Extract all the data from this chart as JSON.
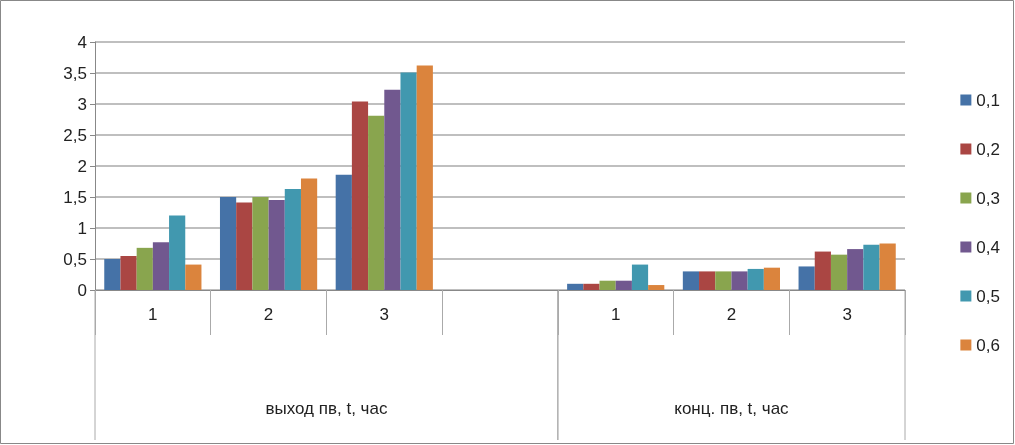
{
  "chart_data": {
    "type": "bar",
    "categories": [
      "1",
      "2",
      "3",
      null,
      "1",
      "2",
      "3"
    ],
    "annotations": [
      "выход пв, t, час",
      "конц. пв, t, час"
    ],
    "series": [
      {
        "name": "0,1",
        "color": "#4572a7",
        "values": [
          0.5,
          1.5,
          1.86,
          null,
          0.1,
          0.3,
          0.38
        ]
      },
      {
        "name": "0,2",
        "color": "#aa4643",
        "values": [
          0.55,
          1.41,
          3.04,
          null,
          0.1,
          0.3,
          0.62
        ]
      },
      {
        "name": "0,3",
        "color": "#89a54e",
        "values": [
          0.68,
          1.5,
          2.81,
          null,
          0.15,
          0.3,
          0.57
        ]
      },
      {
        "name": "0,4",
        "color": "#71588f",
        "values": [
          0.77,
          1.45,
          3.23,
          null,
          0.15,
          0.3,
          0.66
        ]
      },
      {
        "name": "0,5",
        "color": "#4198af",
        "values": [
          1.2,
          1.63,
          3.51,
          null,
          0.41,
          0.34,
          0.73
        ]
      },
      {
        "name": "0,6",
        "color": "#db843d",
        "values": [
          0.41,
          1.8,
          3.62,
          null,
          0.08,
          0.36,
          0.75
        ]
      }
    ],
    "ylim": [
      0,
      4
    ],
    "yticks": [
      0,
      {
        "value": 0.5,
        "label": "0,5"
      },
      1,
      {
        "value": 1.5,
        "label": "1,5"
      },
      2,
      {
        "value": 2.5,
        "label": "2,5"
      },
      3,
      {
        "value": 3.5,
        "label": "3,5"
      },
      4
    ],
    "grid": "y",
    "legend": "right"
  }
}
